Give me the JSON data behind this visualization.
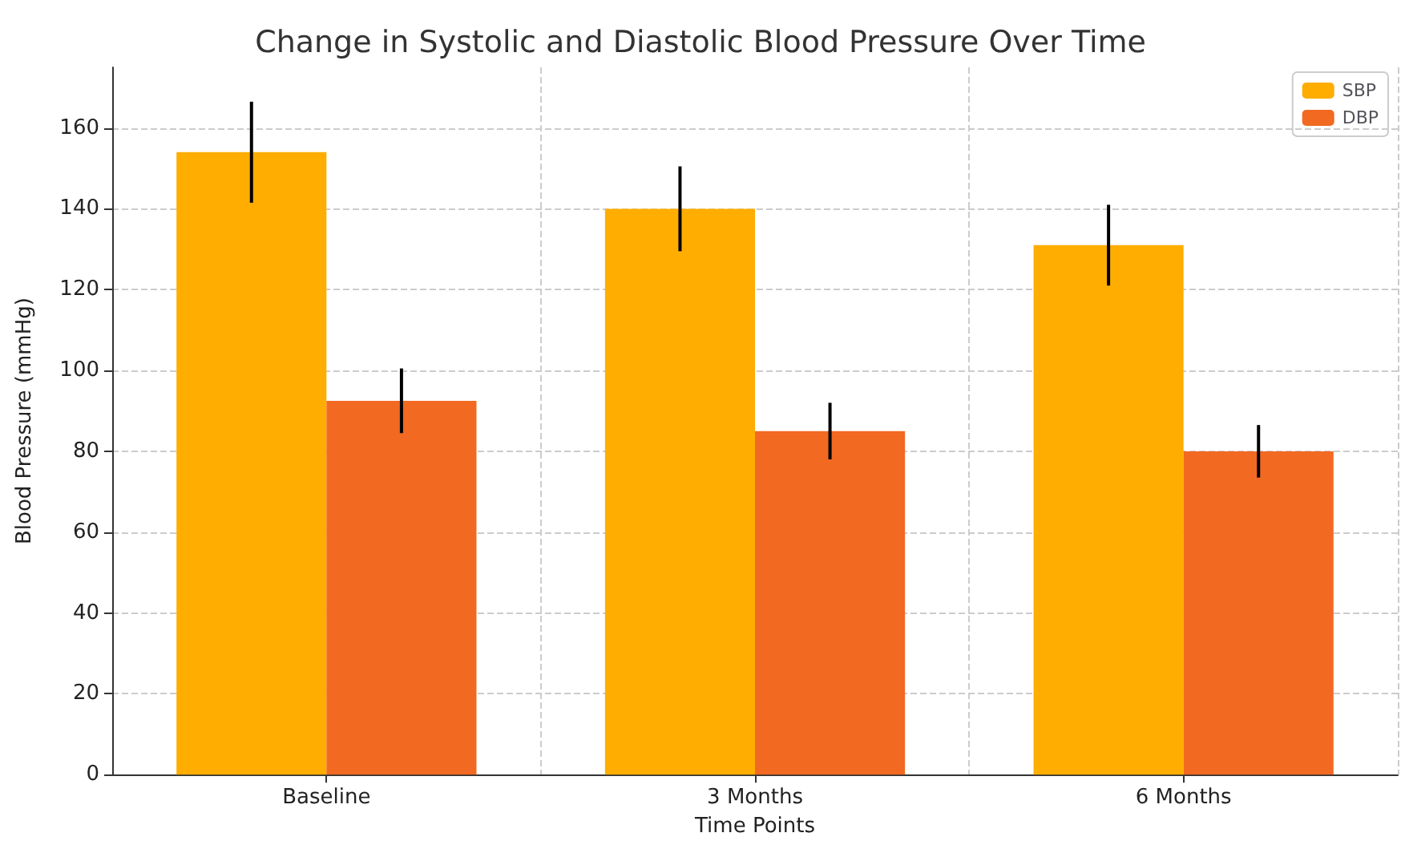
{
  "chart_data": {
    "type": "bar",
    "title": "Change in Systolic and Diastolic Blood Pressure Over Time",
    "xlabel": "Time Points",
    "ylabel": "Blood Pressure (mmHg)",
    "categories": [
      "Baseline",
      "3 Months",
      "6 Months"
    ],
    "series": [
      {
        "name": "SBP",
        "color": "#ffad00",
        "values": [
          154,
          140,
          131
        ],
        "errors": [
          12.5,
          10.5,
          10
        ]
      },
      {
        "name": "DBP",
        "color": "#f26922",
        "values": [
          92.5,
          85,
          80
        ],
        "errors": [
          8,
          7,
          6.5
        ]
      }
    ],
    "ylim": [
      0,
      175
    ],
    "yticks": [
      0,
      20,
      40,
      60,
      80,
      100,
      120,
      140,
      160
    ],
    "grid": true,
    "legend": "top right"
  }
}
